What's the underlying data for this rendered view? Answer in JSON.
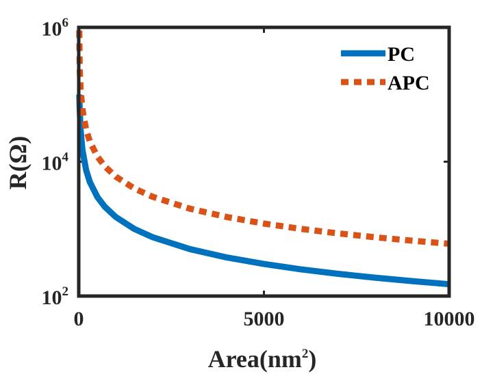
{
  "chart_data": {
    "type": "line",
    "title": "",
    "xlabel": "Area(nm",
    "xlabel_superscript": "2",
    "xlabel_close": ")",
    "ylabel": "R(Ω)",
    "xscale": "linear",
    "yscale": "log",
    "xlim": [
      0,
      10000
    ],
    "ylim": [
      100,
      1000000
    ],
    "xticks": [
      {
        "value": 0,
        "label": "0"
      },
      {
        "value": 5000,
        "label": "5000"
      },
      {
        "value": 10000,
        "label": "10000"
      }
    ],
    "yticks": [
      {
        "value": 100,
        "base": "10",
        "exp": "2"
      },
      {
        "value": 10000,
        "base": "10",
        "exp": "4"
      },
      {
        "value": 1000000,
        "base": "10",
        "exp": "6"
      }
    ],
    "legend_position": "top-right",
    "series": [
      {
        "name": "PC",
        "color": "#0072BD",
        "style": "solid",
        "x": [
          15,
          25,
          50,
          100,
          200,
          300,
          500,
          700,
          1000,
          1500,
          2000,
          3000,
          4000,
          5000,
          6000,
          7000,
          8000,
          9000,
          10000
        ],
        "y": [
          100000,
          60000,
          30000,
          15000,
          7500,
          5000,
          3000,
          2143,
          1500,
          1000,
          750,
          500,
          375,
          300,
          250,
          214,
          188,
          167,
          150
        ]
      },
      {
        "name": "APC",
        "color": "#D95319",
        "style": "dotted",
        "x": [
          15,
          25,
          50,
          100,
          200,
          300,
          500,
          700,
          1000,
          1500,
          2000,
          3000,
          4000,
          5000,
          6000,
          7000,
          8000,
          9000,
          10000
        ],
        "y": [
          900000,
          240000,
          120000,
          60000,
          30000,
          20000,
          12000,
          8571,
          6000,
          4000,
          3000,
          2000,
          1500,
          1200,
          1000,
          857,
          750,
          667,
          600
        ]
      }
    ]
  }
}
